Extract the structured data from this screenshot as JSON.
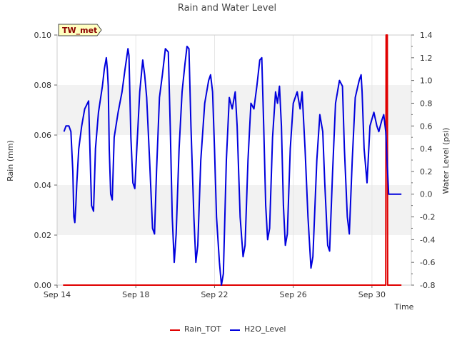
{
  "chart_data": {
    "type": "line",
    "title": "Rain and Water Level",
    "site_label": "TW_met",
    "xlabel": "Time",
    "ylabel_left": "Rain (mm)",
    "ylabel_right": "Water Level (psi)",
    "x_ticks": [
      "Sep 14",
      "Sep 18",
      "Sep 22",
      "Sep 26",
      "Sep 30"
    ],
    "xlim_days": [
      0,
      18
    ],
    "left_ylim": [
      0,
      0.1
    ],
    "left_ticks": [
      "0.00",
      "0.02",
      "0.04",
      "0.06",
      "0.08",
      "0.10"
    ],
    "right_ylim": [
      -0.8,
      1.4
    ],
    "right_ticks": [
      "-0.8",
      "-0.6",
      "-0.4",
      "-0.2",
      "0.0",
      "0.2",
      "0.4",
      "0.6",
      "0.8",
      "1.0",
      "1.2",
      "1.4"
    ],
    "grid": true,
    "legend_position": "bottom",
    "colors": {
      "band": "#f2f2f2",
      "grid": "#e6e6e6",
      "rain": "#e00000",
      "level": "#0000dd"
    },
    "series": [
      {
        "name": "Rain_TOT",
        "axis": "left",
        "points": [
          [
            0.3,
            0.0
          ],
          [
            16.7,
            0.0
          ],
          [
            16.72,
            0.1
          ],
          [
            16.78,
            0.1
          ],
          [
            16.8,
            0.0
          ],
          [
            17.5,
            0.0
          ]
        ]
      },
      {
        "name": "H2O_Level",
        "axis": "right",
        "points": [
          [
            0.35,
            0.55
          ],
          [
            0.45,
            0.6
          ],
          [
            0.6,
            0.6
          ],
          [
            0.7,
            0.55
          ],
          [
            0.8,
            0.2
          ],
          [
            0.85,
            -0.2
          ],
          [
            0.9,
            -0.25
          ],
          [
            0.95,
            -0.1
          ],
          [
            1.0,
            0.1
          ],
          [
            1.1,
            0.4
          ],
          [
            1.25,
            0.6
          ],
          [
            1.4,
            0.75
          ],
          [
            1.6,
            0.82
          ],
          [
            1.7,
            0.2
          ],
          [
            1.75,
            -0.1
          ],
          [
            1.85,
            -0.15
          ],
          [
            1.95,
            0.4
          ],
          [
            2.1,
            0.72
          ],
          [
            2.3,
            0.95
          ],
          [
            2.4,
            1.1
          ],
          [
            2.5,
            1.2
          ],
          [
            2.55,
            1.1
          ],
          [
            2.6,
            0.95
          ],
          [
            2.65,
            0.4
          ],
          [
            2.72,
            0.0
          ],
          [
            2.8,
            -0.05
          ],
          [
            2.9,
            0.5
          ],
          [
            3.1,
            0.72
          ],
          [
            3.3,
            0.9
          ],
          [
            3.45,
            1.1
          ],
          [
            3.6,
            1.28
          ],
          [
            3.65,
            1.22
          ],
          [
            3.75,
            0.5
          ],
          [
            3.85,
            0.1
          ],
          [
            3.95,
            0.05
          ],
          [
            4.05,
            0.4
          ],
          [
            4.2,
            0.9
          ],
          [
            4.35,
            1.18
          ],
          [
            4.45,
            1.05
          ],
          [
            4.55,
            0.85
          ],
          [
            4.7,
            0.3
          ],
          [
            4.85,
            -0.3
          ],
          [
            4.95,
            -0.35
          ],
          [
            5.05,
            0.2
          ],
          [
            5.2,
            0.85
          ],
          [
            5.35,
            1.05
          ],
          [
            5.5,
            1.28
          ],
          [
            5.65,
            1.25
          ],
          [
            5.75,
            0.6
          ],
          [
            5.85,
            -0.2
          ],
          [
            5.95,
            -0.6
          ],
          [
            6.05,
            -0.35
          ],
          [
            6.2,
            0.4
          ],
          [
            6.35,
            0.9
          ],
          [
            6.5,
            1.15
          ],
          [
            6.6,
            1.3
          ],
          [
            6.7,
            1.28
          ],
          [
            6.8,
            0.6
          ],
          [
            6.95,
            -0.2
          ],
          [
            7.05,
            -0.6
          ],
          [
            7.15,
            -0.45
          ],
          [
            7.3,
            0.3
          ],
          [
            7.5,
            0.8
          ],
          [
            7.7,
            1.0
          ],
          [
            7.8,
            1.05
          ],
          [
            7.9,
            0.9
          ],
          [
            8.0,
            0.4
          ],
          [
            8.1,
            -0.2
          ],
          [
            8.25,
            -0.6
          ],
          [
            8.35,
            -0.8
          ],
          [
            8.45,
            -0.7
          ],
          [
            8.6,
            0.3
          ],
          [
            8.75,
            0.85
          ],
          [
            8.9,
            0.75
          ],
          [
            9.05,
            0.9
          ],
          [
            9.15,
            0.6
          ],
          [
            9.3,
            -0.2
          ],
          [
            9.45,
            -0.55
          ],
          [
            9.55,
            -0.45
          ],
          [
            9.7,
            0.3
          ],
          [
            9.85,
            0.8
          ],
          [
            10.0,
            0.75
          ],
          [
            10.15,
            0.95
          ],
          [
            10.3,
            1.18
          ],
          [
            10.4,
            1.2
          ],
          [
            10.5,
            0.6
          ],
          [
            10.6,
            -0.1
          ],
          [
            10.7,
            -0.4
          ],
          [
            10.8,
            -0.3
          ],
          [
            10.95,
            0.5
          ],
          [
            11.1,
            0.9
          ],
          [
            11.2,
            0.8
          ],
          [
            11.3,
            0.95
          ],
          [
            11.4,
            0.6
          ],
          [
            11.5,
            -0.1
          ],
          [
            11.6,
            -0.45
          ],
          [
            11.7,
            -0.35
          ],
          [
            11.85,
            0.4
          ],
          [
            12.0,
            0.8
          ],
          [
            12.2,
            0.9
          ],
          [
            12.35,
            0.75
          ],
          [
            12.45,
            0.9
          ],
          [
            12.6,
            0.4
          ],
          [
            12.75,
            -0.2
          ],
          [
            12.9,
            -0.65
          ],
          [
            13.0,
            -0.55
          ],
          [
            13.2,
            0.3
          ],
          [
            13.35,
            0.7
          ],
          [
            13.5,
            0.55
          ],
          [
            13.6,
            0.1
          ],
          [
            13.75,
            -0.45
          ],
          [
            13.85,
            -0.5
          ],
          [
            14.0,
            0.2
          ],
          [
            14.15,
            0.8
          ],
          [
            14.35,
            1.0
          ],
          [
            14.5,
            0.95
          ],
          [
            14.6,
            0.4
          ],
          [
            14.75,
            -0.2
          ],
          [
            14.85,
            -0.35
          ],
          [
            15.0,
            0.3
          ],
          [
            15.15,
            0.85
          ],
          [
            15.35,
            1.0
          ],
          [
            15.45,
            1.05
          ],
          [
            15.5,
            0.9
          ],
          [
            15.6,
            0.4
          ],
          [
            15.75,
            0.1
          ],
          [
            15.9,
            0.6
          ],
          [
            16.1,
            0.72
          ],
          [
            16.25,
            0.6
          ],
          [
            16.35,
            0.55
          ],
          [
            16.5,
            0.65
          ],
          [
            16.6,
            0.7
          ],
          [
            16.7,
            0.55
          ],
          [
            16.85,
            0.0
          ],
          [
            17.5,
            0.0
          ]
        ]
      }
    ]
  }
}
